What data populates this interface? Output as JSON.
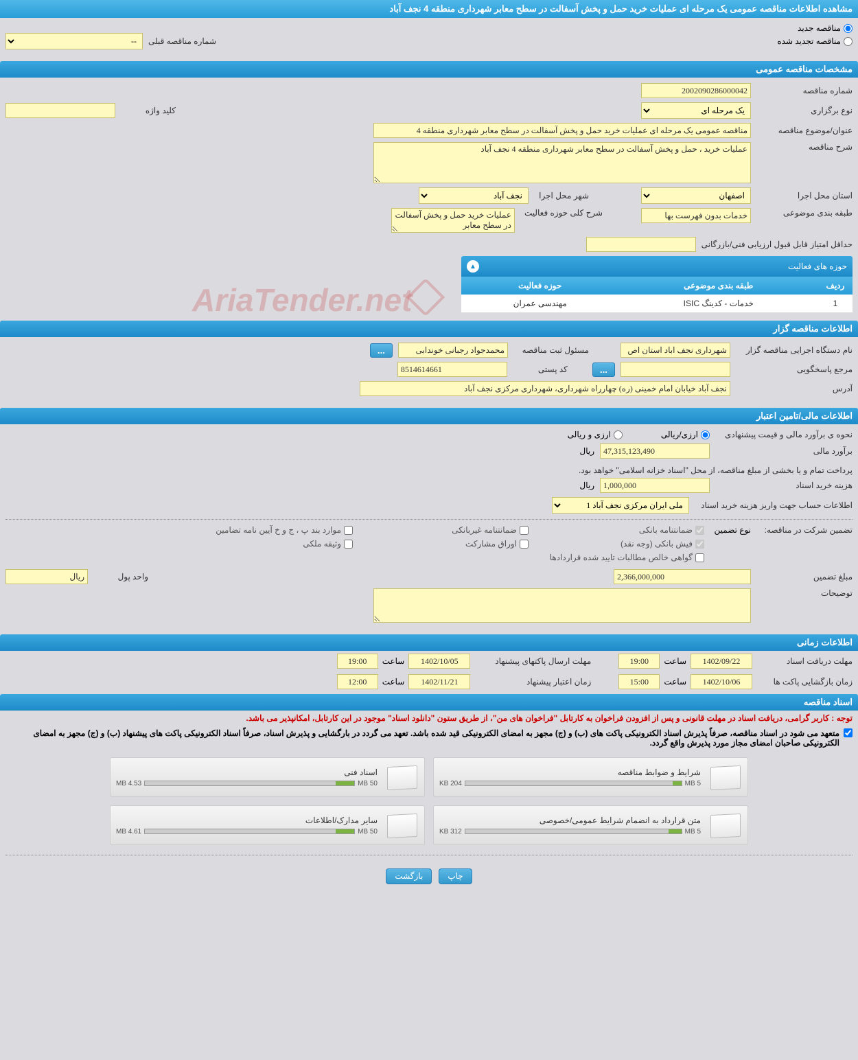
{
  "title": "مشاهده اطلاعات مناقصه عمومی یک مرحله ای عملیات خرید حمل و پخش آسفالت در سطح معابر شهرداری منطقه 4 نجف آباد",
  "tender_type": {
    "new_label": "مناقصه جدید",
    "renewed_label": "مناقصه تجدید شده",
    "prev_number_label": "شماره مناقصه قبلی",
    "prev_number_value": "--"
  },
  "sections": {
    "general": "مشخصات مناقصه عمومی",
    "caller": "اطلاعات مناقصه گزار",
    "financial": "اطلاعات مالی/تامین اعتبار",
    "time": "اطلاعات زمانی",
    "docs": "اسناد مناقصه"
  },
  "general": {
    "tender_number_label": "شماره مناقصه",
    "tender_number": "2002090286000042",
    "holding_type_label": "نوع برگزاری",
    "holding_type": "یک مرحله ای",
    "keyword_label": "کلید واژه",
    "keyword": "",
    "title_label": "عنوان/موضوع مناقصه",
    "title_value": "مناقصه عمومی یک مرحله ای عملیات خرید حمل و پخش آسفالت در سطح معابر شهرداری منطقه 4",
    "desc_label": "شرح مناقصه",
    "desc_value": "عملیات خرید ، حمل و پخش آسفالت در سطح معابر شهرداری منطقه 4 نجف آباد",
    "province_label": "استان محل اجرا",
    "province": "اصفهان",
    "city_label": "شهر محل اجرا",
    "city": "نجف آباد",
    "category_label": "طبقه بندی موضوعی",
    "category": "خدمات بدون فهرست بها",
    "scope_label": "شرح کلی حوزه فعالیت",
    "scope": "عملیات خرید حمل و پخش آسفالت در سطح معابر",
    "min_score_label": "حداقل امتیاز قابل قبول ارزیابی فنی/بازرگانی",
    "min_score": ""
  },
  "activity": {
    "header": "حوزه های فعالیت",
    "col_row": "ردیف",
    "col_category": "طبقه بندی موضوعی",
    "col_scope": "حوزه فعالیت",
    "rows": [
      {
        "n": "1",
        "cat": "خدمات - کدینگ ISIC",
        "scope": "مهندسی عمران"
      }
    ]
  },
  "caller": {
    "org_label": "نام دستگاه اجرایی مناقصه گزار",
    "org": "شهرداری نجف اباد استان اص",
    "registrar_label": "مسئول ثبت مناقصه",
    "registrar": "محمدجواد رجبانی خوندابی",
    "responder_label": "مرجع پاسخگویی",
    "responder": "",
    "postal_label": "کد پستی",
    "postal": "8514614661",
    "address_label": "آدرس",
    "address": "نجف آباد خیابان امام خمینی (ره) چهارراه شهرداری، شهرداری مرکزی نجف آباد"
  },
  "financial": {
    "estimate_method_label": "نحوه ی برآورد مالی و قیمت پیشنهادی",
    "rial_option": "ارزی/ریالی",
    "currency_option": "ارزی و ریالی",
    "estimate_label": "برآورد مالی",
    "estimate": "47,315,123,490",
    "rial_unit": "ریال",
    "payment_note": "پرداخت تمام و یا بخشی از مبلغ مناقصه، از محل \"اسناد خزانه اسلامی\" خواهد بود.",
    "doc_fee_label": "هزینه خرید اسناد",
    "doc_fee": "1,000,000",
    "account_label": "اطلاعات حساب جهت واریز هزینه خرید اسناد",
    "account": "ملی ایران مرکزی نجف آباد 1",
    "guarantee_type_label": "تضمین شرکت در مناقصه:",
    "guarantee_sub": "نوع تضمین",
    "chk_bank": "ضمانتنامه بانکی",
    "chk_nonbank": "ضمانتنامه غیربانکی",
    "chk_items": "موارد بند پ ، ج و خ آیین نامه تضامین",
    "chk_cash": "فیش بانکی (وجه نقد)",
    "chk_securities": "اوراق مشارکت",
    "chk_property": "وثیقه ملکی",
    "chk_contracts": "گواهی خالص مطالبات تایید شده قراردادها",
    "guarantee_amount_label": "مبلغ تضمین",
    "guarantee_amount": "2,366,000,000",
    "currency_unit_label": "واحد پول",
    "currency_unit": "ریال",
    "notes_label": "توضیحات",
    "notes": ""
  },
  "time": {
    "doc_deadline_label": "مهلت دریافت اسناد",
    "doc_deadline_date": "1402/09/22",
    "doc_deadline_time": "19:00",
    "offer_deadline_label": "مهلت ارسال پاکتهای پیشنهاد",
    "offer_deadline_date": "1402/10/05",
    "offer_deadline_time": "19:00",
    "opening_label": "زمان بازگشایی پاکت ها",
    "opening_date": "1402/10/06",
    "opening_time": "15:00",
    "validity_label": "زمان اعتبار پیشنهاد",
    "validity_date": "1402/11/21",
    "validity_time": "12:00",
    "time_label": "ساعت"
  },
  "docs": {
    "warning1": "توجه : کاربر گرامی، دریافت اسناد در مهلت قانونی و پس از افزودن فراخوان به کارتابل \"فراخوان های من\"، از طریق ستون \"دانلود اسناد\" موجود در این کارتابل، امکانپذیر می باشد.",
    "warning2": "متعهد می شود در اسناد مناقصه، صرفاً پذیرش اسناد الکترونیکی پاکت های (ب) و (ج) مجهز به امضای الکترونیکی قید شده باشد. تعهد می گردد در بارگشایی و پذیرش اسناد، صرفاً اسناد الکترونیکی پاکت های پیشنهاد (ب) و (ج) مجهز به امضای الکترونیکی صاحبان امضای مجاز مورد پذیرش واقع گردد.",
    "items": [
      {
        "title": "شرایط و ضوابط مناقصه",
        "used": "204 KB",
        "total": "5 MB",
        "pct": 4
      },
      {
        "title": "اسناد فنی",
        "used": "4.53 MB",
        "total": "50 MB",
        "pct": 9
      },
      {
        "title": "متن قرارداد به انضمام شرایط عمومی/خصوصی",
        "used": "312 KB",
        "total": "5 MB",
        "pct": 6
      },
      {
        "title": "سایر مدارک/اطلاعات",
        "used": "4.61 MB",
        "total": "50 MB",
        "pct": 9
      }
    ]
  },
  "footer": {
    "print": "چاپ",
    "back": "بازگشت"
  },
  "watermark": "AriaTender.net"
}
